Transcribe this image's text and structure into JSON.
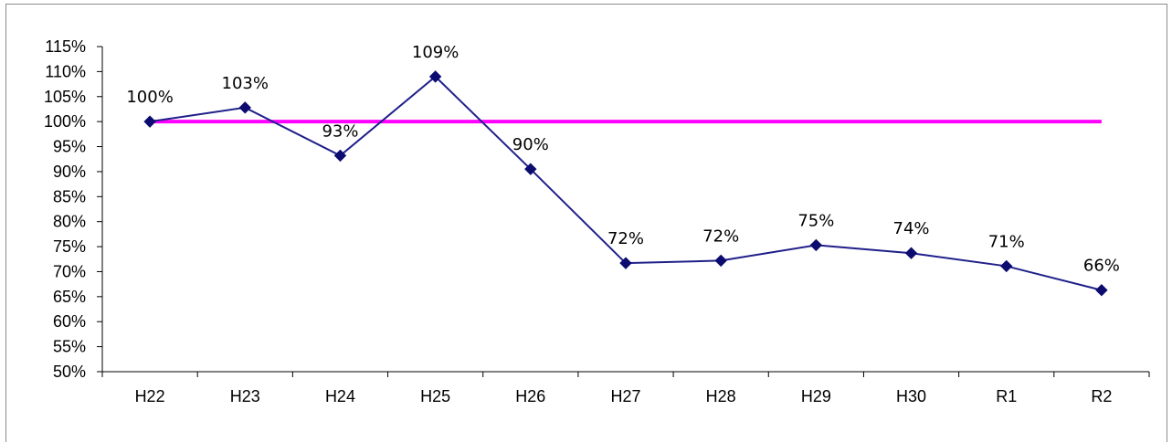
{
  "chart_data": {
    "type": "line",
    "categories": [
      "H22",
      "H23",
      "H24",
      "H25",
      "H26",
      "H27",
      "H28",
      "H29",
      "H30",
      "R1",
      "R2"
    ],
    "series": [
      {
        "values": [
          100,
          102.8,
          93.2,
          109,
          90.5,
          71.7,
          72.2,
          75.3,
          73.7,
          71.1,
          66.3
        ],
        "labels": [
          "100%",
          "103%",
          "93%",
          "109%",
          "90%",
          "72%",
          "72%",
          "75%",
          "74%",
          "71%",
          "66%"
        ],
        "color": "#1f1f8a",
        "marker": "diamond"
      },
      {
        "values": [
          100,
          100,
          100,
          100,
          100,
          100,
          100,
          100,
          100,
          100,
          100
        ],
        "color": "#ff00ff",
        "marker": "none"
      }
    ],
    "y_ticks": [
      "50%",
      "55%",
      "60%",
      "65%",
      "70%",
      "75%",
      "80%",
      "85%",
      "90%",
      "95%",
      "100%",
      "105%",
      "110%",
      "115%"
    ],
    "ylim": [
      50,
      115
    ],
    "ystep": 5,
    "title": "",
    "xlabel": "",
    "ylabel": "",
    "grid": false,
    "legend": "none"
  }
}
